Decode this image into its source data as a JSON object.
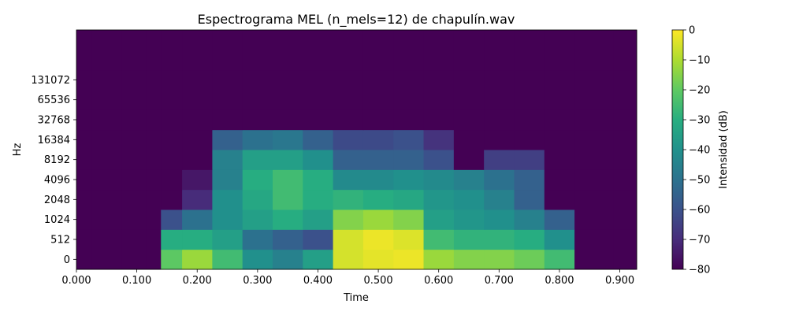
{
  "chart_data": {
    "type": "heatmap",
    "title": "Espectrograma MEL (n_mels=12) de chapulín.wav",
    "xlabel": "Time",
    "ylabel": "Hz",
    "xlim": [
      0,
      0.928
    ],
    "x_ticks": [
      "0.000",
      "0.100",
      "0.200",
      "0.300",
      "0.400",
      "0.500",
      "0.600",
      "0.700",
      "0.800",
      "0.900"
    ],
    "y_ticks": [
      "0",
      "512",
      "1024",
      "2048",
      "4096",
      "8192",
      "16384",
      "32768",
      "65536",
      "131072"
    ],
    "colorbar": {
      "label": "Intensidad (dB)",
      "range": [
        -80,
        0
      ],
      "ticks": [
        "0",
        "−10",
        "−20",
        "−30",
        "−40",
        "−50",
        "−60",
        "−70",
        "−80"
      ],
      "colormap": "viridis"
    },
    "time_axis_sec": [
      0.0,
      0.05,
      0.1,
      0.13,
      0.15,
      0.2,
      0.25,
      0.3,
      0.35,
      0.4,
      0.45,
      0.5,
      0.55,
      0.6,
      0.65,
      0.7,
      0.75,
      0.8,
      0.85,
      0.93
    ],
    "mel_band_levels_db": [
      [
        -80,
        -80,
        -80,
        -80,
        -20,
        -12,
        -25,
        -40,
        -45,
        -35,
        -5,
        -3,
        -2,
        -12,
        -15,
        -15,
        -18,
        -25,
        -80,
        -80
      ],
      [
        -80,
        -80,
        -80,
        -80,
        -30,
        -30,
        -35,
        -50,
        -55,
        -60,
        -5,
        -2,
        -4,
        -25,
        -28,
        -28,
        -30,
        -40,
        -80,
        -80
      ],
      [
        -80,
        -80,
        -80,
        -80,
        -60,
        -50,
        -40,
        -35,
        -30,
        -35,
        -15,
        -12,
        -15,
        -35,
        -38,
        -40,
        -45,
        -55,
        -80,
        -80
      ],
      [
        -80,
        -80,
        -80,
        -80,
        -80,
        -70,
        -40,
        -32,
        -25,
        -30,
        -28,
        -30,
        -32,
        -38,
        -40,
        -45,
        -55,
        -80,
        -80,
        -80
      ],
      [
        -80,
        -80,
        -80,
        -80,
        -80,
        -75,
        -45,
        -30,
        -25,
        -30,
        -42,
        -42,
        -40,
        -42,
        -45,
        -50,
        -55,
        -80,
        -80,
        -80
      ],
      [
        -80,
        -80,
        -80,
        -80,
        -80,
        -80,
        -45,
        -35,
        -35,
        -40,
        -55,
        -55,
        -55,
        -60,
        -80,
        -65,
        -65,
        -80,
        -80,
        -80
      ],
      [
        -80,
        -80,
        -80,
        -80,
        -80,
        -80,
        -55,
        -50,
        -48,
        -55,
        -62,
        -62,
        -60,
        -68,
        -80,
        -80,
        -80,
        -80,
        -80,
        -80
      ],
      [
        -80,
        -80,
        -80,
        -80,
        -80,
        -80,
        -80,
        -80,
        -80,
        -80,
        -80,
        -80,
        -80,
        -80,
        -80,
        -80,
        -80,
        -80,
        -80,
        -80
      ],
      [
        -80,
        -80,
        -80,
        -80,
        -80,
        -80,
        -80,
        -80,
        -80,
        -80,
        -80,
        -80,
        -80,
        -80,
        -80,
        -80,
        -80,
        -80,
        -80,
        -80
      ],
      [
        -80,
        -80,
        -80,
        -80,
        -80,
        -80,
        -80,
        -80,
        -80,
        -80,
        -80,
        -80,
        -80,
        -80,
        -80,
        -80,
        -80,
        -80,
        -80,
        -80
      ],
      [
        -80,
        -80,
        -80,
        -80,
        -80,
        -80,
        -80,
        -80,
        -80,
        -80,
        -80,
        -80,
        -80,
        -80,
        -80,
        -80,
        -80,
        -80,
        -80,
        -80
      ],
      [
        -80,
        -80,
        -80,
        -80,
        -80,
        -80,
        -80,
        -80,
        -80,
        -80,
        -80,
        -80,
        -80,
        -80,
        -80,
        -80,
        -80,
        -80,
        -80,
        -80
      ]
    ]
  }
}
